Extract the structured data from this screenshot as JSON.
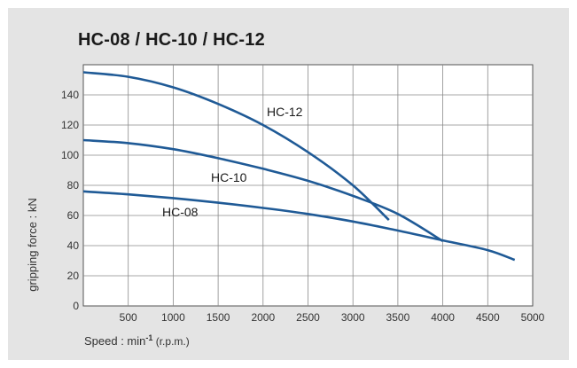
{
  "chart_data": {
    "type": "line",
    "title": "HC-08 / HC-10 / HC-12",
    "xlabel": "Speed : min",
    "xlabel_sup": "-1",
    "xlabel_suffix": " (r.p.m.)",
    "ylabel": "gripping force : kN",
    "xlim": [
      0,
      5000
    ],
    "ylim": [
      0,
      160
    ],
    "x_ticks": [
      500,
      1000,
      1500,
      2000,
      2500,
      3000,
      3500,
      4000,
      4500,
      5000
    ],
    "y_ticks": [
      0,
      20,
      40,
      60,
      80,
      100,
      120,
      140
    ],
    "origin_label": "0",
    "grid": true,
    "series": [
      {
        "name": "HC-12",
        "color": "#1f5a96",
        "points": [
          [
            0,
            155
          ],
          [
            500,
            152
          ],
          [
            1000,
            145
          ],
          [
            1500,
            134
          ],
          [
            2000,
            120
          ],
          [
            2500,
            102
          ],
          [
            3000,
            80
          ],
          [
            3400,
            57
          ]
        ]
      },
      {
        "name": "HC-10",
        "color": "#1f5a96",
        "points": [
          [
            0,
            110
          ],
          [
            500,
            108
          ],
          [
            1000,
            104
          ],
          [
            1500,
            98
          ],
          [
            2000,
            91
          ],
          [
            2500,
            83
          ],
          [
            3000,
            73
          ],
          [
            3500,
            61
          ],
          [
            4000,
            43
          ]
        ]
      },
      {
        "name": "HC-08",
        "color": "#1f5a96",
        "points": [
          [
            0,
            76
          ],
          [
            500,
            74
          ],
          [
            1000,
            71.5
          ],
          [
            1500,
            68.5
          ],
          [
            2000,
            65
          ],
          [
            2500,
            61
          ],
          [
            3000,
            56
          ],
          [
            3500,
            50
          ],
          [
            4000,
            43.5
          ],
          [
            4500,
            37
          ],
          [
            4800,
            30.5
          ]
        ]
      }
    ]
  }
}
